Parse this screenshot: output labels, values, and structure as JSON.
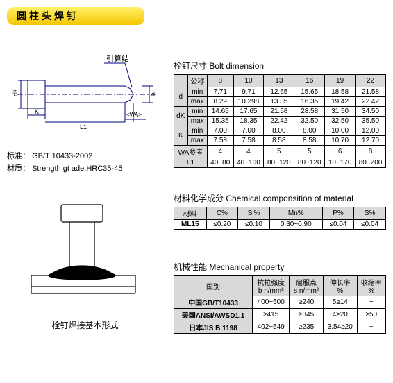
{
  "title": "圆柱头焊钉",
  "standard_label": "标准：",
  "standard_value": "GB/T 10433-2002",
  "material_label": "材质：",
  "material_value": "Strength gt ade:HRC35-45",
  "diagram2_caption": "栓钉焊接基本形式",
  "top_annotation": "引算结",
  "bolt_dim": {
    "title": "栓钉尺寸 Bolt dimension",
    "header": [
      "公称",
      "8",
      "10",
      "13",
      "16",
      "19",
      "22"
    ],
    "rows": [
      {
        "k1": "d",
        "k2": "min",
        "v": [
          "7.71",
          "9.71",
          "12.65",
          "15.65",
          "18.58",
          "21.58"
        ]
      },
      {
        "k1": "",
        "k2": "max",
        "v": [
          "8.29",
          "10.298",
          "13.35",
          "16.35",
          "19.42",
          "22.42"
        ]
      },
      {
        "k1": "dK",
        "k2": "min",
        "v": [
          "14.65",
          "17.65",
          "21.58",
          "28.58",
          "31.50",
          "34.50"
        ]
      },
      {
        "k1": "",
        "k2": "max",
        "v": [
          "15.35",
          "18.35",
          "22.42",
          "32.50",
          "32.50",
          "35.50"
        ]
      },
      {
        "k1": "K",
        "k2": "min",
        "v": [
          "7.00",
          "7.00",
          "8.00",
          "8.00",
          "10.00",
          "12.00"
        ]
      },
      {
        "k1": "",
        "k2": "max",
        "v": [
          "7.58",
          "7.58",
          "8.58",
          "8.58",
          "10.70",
          "12.70"
        ]
      },
      {
        "k1": "WA参考",
        "k2": "",
        "v": [
          "4",
          "4",
          "5",
          "5",
          "6",
          "8"
        ]
      },
      {
        "k1": "L1",
        "k2": "",
        "v": [
          "40~80",
          "40~100",
          "80~120",
          "80~120",
          "10~170",
          "80~200"
        ]
      }
    ]
  },
  "chem": {
    "title": "材料化学成分 Chemical componsition of material",
    "header": [
      "材料",
      "C%",
      "Si%",
      "Mn%",
      "P%",
      "S%"
    ],
    "rows": [
      [
        "ML15",
        "≤0.20",
        "≤0.10",
        "0.30~0.90",
        "≤0.04",
        "≤0.04"
      ]
    ]
  },
  "mech": {
    "title": "机械性能 Mechanical property",
    "header": [
      "国别",
      "抗拉强度\nb n/mm²",
      "屈服点\ns n/mm²",
      "伸长率\n%",
      "收缩率\n%"
    ],
    "rows": [
      [
        "中国GB/T10433",
        "400~500",
        "≥240",
        "5≥14",
        "~"
      ],
      [
        "美国ANSI/AWSD1.1",
        "≥415",
        "≥345",
        "4≥20",
        "≥50"
      ],
      [
        "日本JIS B 1198",
        "402~549",
        "≥235",
        "3.54≥20",
        "~"
      ]
    ]
  },
  "colors": {
    "header_bg": "#d9d9d9",
    "border": "#000",
    "line": "#000080"
  }
}
